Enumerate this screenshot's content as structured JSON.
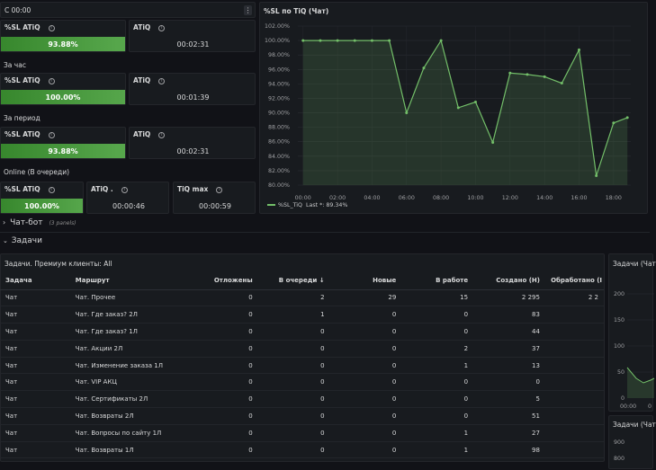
{
  "top_row": {
    "label": "С 00:00",
    "menu_icon": "kebab-icon"
  },
  "stats": [
    {
      "sl_label": "%SL ATiQ",
      "sl_value": "93.88%",
      "atiq_label": "ATiQ",
      "atiq_value": "00:02:31",
      "sl_fill": 93.88
    },
    {
      "section": "За час",
      "sl_label": "%SL ATiQ",
      "sl_value": "100.00%",
      "atiq_label": "ATiQ",
      "atiq_value": "00:01:39",
      "sl_fill": 100
    },
    {
      "section": "За период",
      "sl_label": "%SL ATiQ",
      "sl_value": "93.88%",
      "atiq_label": "ATiQ",
      "atiq_value": "00:02:31",
      "sl_fill": 93.88
    }
  ],
  "online": {
    "section": "Online (В очереди)",
    "sl_label": "%SL ATiQ",
    "sl_value": "100.00%",
    "sl_fill": 100,
    "atiq_label": "ATiQ .",
    "atiq_value": "00:00:46",
    "tiqmax_label": "TiQ max",
    "tiqmax_value": "00:00:59"
  },
  "chart_panel": {
    "title": "%SL по TiQ (Чат)",
    "legend_label": "%SL_TiQ",
    "legend_last": "Last *: 89.34%"
  },
  "chart_data": {
    "type": "area",
    "title": "%SL по TiQ (Чат)",
    "x_ticks": [
      "00:00",
      "02:00",
      "04:00",
      "06:00",
      "08:00",
      "10:00",
      "12:00",
      "14:00",
      "16:00",
      "18:00"
    ],
    "y_ticks": [
      "80.00%",
      "82.00%",
      "84.00%",
      "86.00%",
      "88.00%",
      "90.00%",
      "92.00%",
      "94.00%",
      "96.00%",
      "98.00%",
      "100.00%",
      "102.00%"
    ],
    "ylim": [
      80,
      102
    ],
    "xlim_hours": [
      -0.3,
      19.0
    ],
    "x_hours": [
      0,
      1,
      2,
      3,
      4,
      5,
      6,
      7,
      8,
      9,
      10,
      11,
      12,
      13,
      14,
      15,
      16,
      17,
      18,
      18.8
    ],
    "series": [
      {
        "name": "%SL_TiQ",
        "values": [
          100,
          100,
          100,
          100,
          100,
          100,
          90,
          96.2,
          100,
          90.7,
          91.5,
          85.9,
          95.5,
          95.3,
          95,
          94.1,
          98.7,
          81.3,
          88.6,
          89.34
        ]
      }
    ],
    "grid": true,
    "legend": "bottom-left",
    "color": "#73bf69"
  },
  "collapsed_row": {
    "title": "Чат-бот",
    "meta": "(3 panels)"
  },
  "open_row": {
    "title": "Задачи"
  },
  "table_panel": {
    "title": "Задачи. Премиум клиенты: All",
    "columns": [
      "Задача",
      "Маршрут",
      "Отложены",
      "В очереди",
      "Новые",
      "В работе",
      "Создано (Н)",
      "Обработано (I"
    ],
    "sort_icon": "arrow-down-icon",
    "rows": [
      [
        "Чат",
        "Чат. Прочее",
        "0",
        "2",
        "29",
        "15",
        "2 295",
        "2 2"
      ],
      [
        "Чат",
        "Чат. Где заказ? 2Л",
        "0",
        "1",
        "0",
        "0",
        "83",
        ""
      ],
      [
        "Чат",
        "Чат. Где заказ? 1Л",
        "0",
        "0",
        "0",
        "0",
        "44",
        ""
      ],
      [
        "Чат",
        "Чат. Акции 2Л",
        "0",
        "0",
        "0",
        "2",
        "37",
        ""
      ],
      [
        "Чат",
        "Чат. Изменение заказа 1Л",
        "0",
        "0",
        "0",
        "1",
        "13",
        ""
      ],
      [
        "Чат",
        "Чат. VIP АКЦ",
        "0",
        "0",
        "0",
        "0",
        "0",
        ""
      ],
      [
        "Чат",
        "Чат. Сертификаты 2Л",
        "0",
        "0",
        "0",
        "0",
        "5",
        ""
      ],
      [
        "Чат",
        "Чат. Возвраты 2Л",
        "0",
        "0",
        "0",
        "0",
        "51",
        ""
      ],
      [
        "Чат",
        "Чат. Вопросы по сайту 1Л",
        "0",
        "0",
        "0",
        "1",
        "27",
        ""
      ],
      [
        "Чат",
        "Чат. Возвраты 1Л",
        "0",
        "0",
        "0",
        "1",
        "98",
        ""
      ]
    ]
  },
  "right_panels": [
    {
      "title": "Задачи (Чат",
      "y_ticks": [
        "200",
        "150",
        "100",
        "50",
        "0"
      ],
      "x_ticks": [
        "00:00",
        "0"
      ]
    },
    {
      "title": "Задачи (Чат",
      "y_ticks": [
        "900",
        "800"
      ]
    }
  ]
}
